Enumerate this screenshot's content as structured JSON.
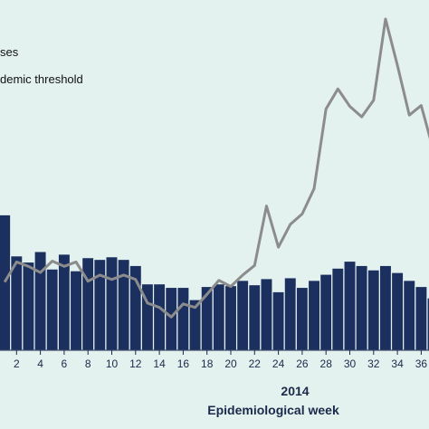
{
  "chart_data": {
    "type": "bar+line",
    "x": [
      1,
      2,
      3,
      4,
      5,
      6,
      7,
      8,
      9,
      10,
      11,
      12,
      13,
      14,
      15,
      16,
      17,
      18,
      19,
      20,
      21,
      22,
      23,
      24,
      25,
      26,
      27,
      28,
      29,
      30,
      31,
      32,
      33,
      34,
      35,
      36,
      37
    ],
    "series": [
      {
        "name": "ses",
        "type": "bar",
        "values": [
          155,
          108,
          101,
          113,
          93,
          110,
          91,
          106,
          104,
          107,
          104,
          97,
          76,
          76,
          72,
          72,
          58,
          73,
          76,
          74,
          80,
          75,
          82,
          67,
          83,
          72,
          80,
          87,
          94,
          102,
          97,
          92,
          97,
          89,
          80,
          73,
          60
        ]
      },
      {
        "name": "demic threshold",
        "type": "line",
        "values": [
          78,
          101,
          96,
          89,
          102,
          96,
          101,
          79,
          86,
          81,
          86,
          81,
          54,
          49,
          38,
          53,
          49,
          64,
          80,
          73,
          86,
          97,
          165,
          118,
          144,
          156,
          185,
          276,
          299,
          279,
          267,
          286,
          379,
          326,
          269,
          280,
          230
        ]
      }
    ],
    "xlim": [
      0,
      37
    ],
    "ylim": [
      0,
      380
    ],
    "tick_labels": [
      "2",
      "4",
      "6",
      "8",
      "10",
      "12",
      "14",
      "16",
      "18",
      "20",
      "22",
      "24",
      "26",
      "28",
      "30",
      "32",
      "34",
      "36"
    ],
    "year_label": "2014",
    "xlabel": "Epidemiological week",
    "colors": {
      "bar": "#1c3060",
      "bar_edge": "#e3f1ef",
      "line": "#8c8c8c",
      "background": "#e3f1ef",
      "axis_text": "#1b2a4a"
    },
    "legend_position": "top-left",
    "grid": false
  }
}
